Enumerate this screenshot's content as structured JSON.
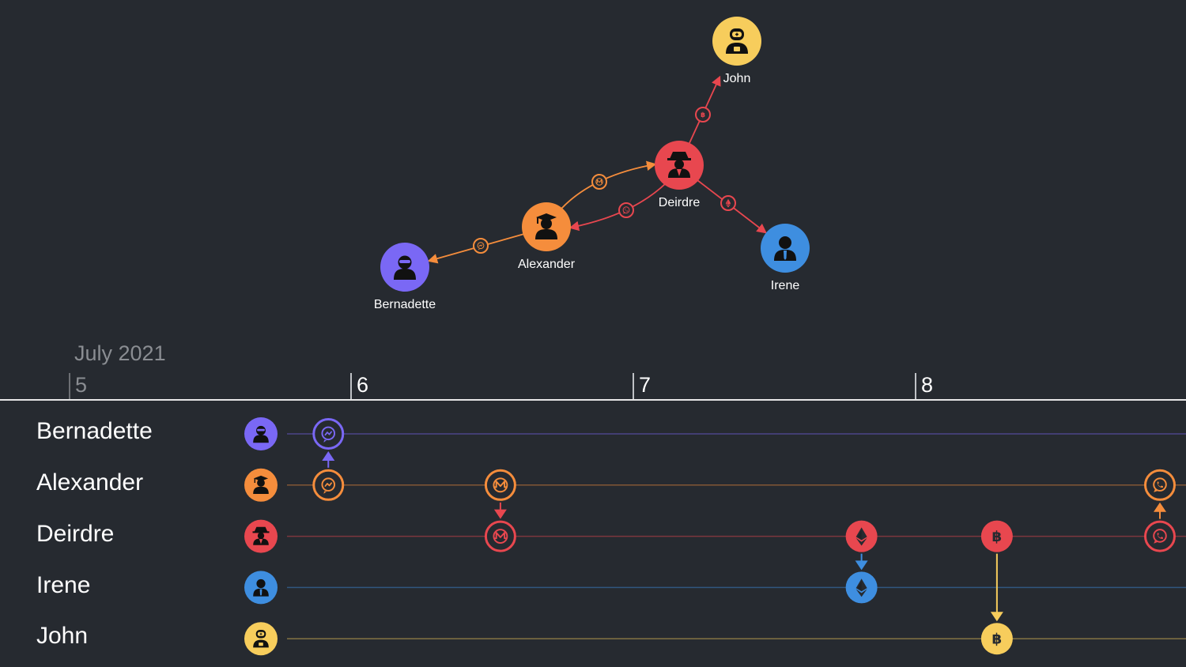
{
  "people": [
    {
      "id": "bernadette",
      "name": "Bernadette",
      "color": "#7a68f5",
      "icon": "ninja-icon"
    },
    {
      "id": "alexander",
      "name": "Alexander",
      "color": "#f58d3c",
      "icon": "graduate-icon"
    },
    {
      "id": "deirdre",
      "name": "Deirdre",
      "color": "#e8474f",
      "icon": "spy-icon"
    },
    {
      "id": "irene",
      "name": "Irene",
      "color": "#3e8ee0",
      "icon": "businessman-icon"
    },
    {
      "id": "john",
      "name": "John",
      "color": "#f7cd5c",
      "icon": "robot-icon"
    }
  ],
  "links": [
    {
      "from": "alexander",
      "to": "bernadette",
      "channel": "messenger-icon"
    },
    {
      "from": "alexander",
      "to": "deirdre",
      "channel": "monero-icon"
    },
    {
      "from": "deirdre",
      "to": "alexander",
      "channel": "whatsapp-icon"
    },
    {
      "from": "deirdre",
      "to": "irene",
      "channel": "ethereum-icon"
    },
    {
      "from": "deirdre",
      "to": "john",
      "channel": "bitcoin-icon"
    }
  ],
  "timebar": {
    "month": "July 2021",
    "ticks": [
      "5",
      "6",
      "7",
      "8"
    ]
  },
  "events": [
    {
      "from": "alexander",
      "to": "bernadette",
      "channel": "messenger-icon",
      "day": 5.92
    },
    {
      "from": "alexander",
      "to": "deirdre",
      "channel": "monero-icon",
      "day": 6.53
    },
    {
      "from": "deirdre",
      "to": "irene",
      "channel": "ethereum-icon",
      "day": 7.81
    },
    {
      "from": "deirdre",
      "to": "john",
      "channel": "bitcoin-icon",
      "day": 8.29
    },
    {
      "from": "deirdre",
      "to": "alexander",
      "channel": "whatsapp-icon",
      "day": 9.0
    }
  ]
}
